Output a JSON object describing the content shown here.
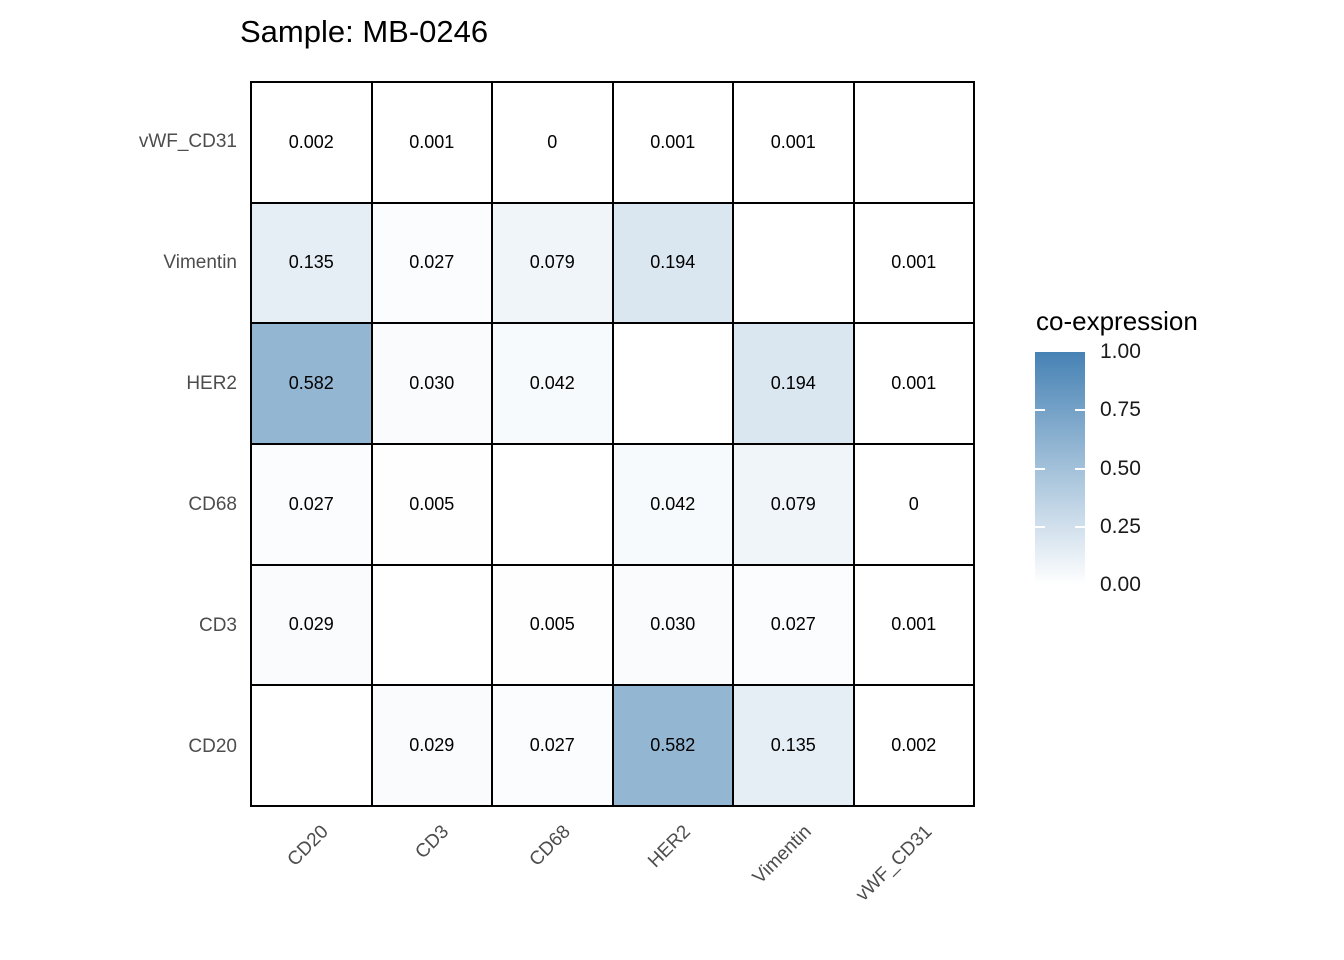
{
  "title": "Sample: MB-0246",
  "legend": {
    "title": "co-expression",
    "tick_labels": [
      "1.00",
      "0.75",
      "0.50",
      "0.25",
      "0.00"
    ],
    "tick_values": [
      1.0,
      0.75,
      0.5,
      0.25,
      0.0
    ],
    "high_color": "#4682B4",
    "low_color": "#FFFFFF"
  },
  "chart_data": {
    "type": "heatmap",
    "title": "Sample: MB-0246",
    "x_categories": [
      "CD20",
      "CD3",
      "CD68",
      "HER2",
      "Vimentin",
      "vWF_CD31"
    ],
    "y_categories": [
      "vWF_CD31",
      "Vimentin",
      "HER2",
      "CD68",
      "CD3",
      "CD20"
    ],
    "values": [
      [
        0.002,
        0.001,
        0,
        0.001,
        0.001,
        null
      ],
      [
        0.135,
        0.027,
        0.079,
        0.194,
        null,
        0.001
      ],
      [
        0.582,
        0.03,
        0.042,
        null,
        0.194,
        0.001
      ],
      [
        0.027,
        0.005,
        null,
        0.042,
        0.079,
        0
      ],
      [
        0.029,
        null,
        0.005,
        0.03,
        0.027,
        0.001
      ],
      [
        null,
        0.029,
        0.027,
        0.582,
        0.135,
        0.002
      ]
    ],
    "value_labels": [
      [
        "0.002",
        "0.001",
        "0",
        "0.001",
        "0.001",
        ""
      ],
      [
        "0.135",
        "0.027",
        "0.079",
        "0.194",
        "",
        "0.001"
      ],
      [
        "0.582",
        "0.030",
        "0.042",
        "",
        "0.194",
        "0.001"
      ],
      [
        "0.027",
        "0.005",
        "",
        "0.042",
        "0.079",
        "0"
      ],
      [
        "0.029",
        "",
        "0.005",
        "0.030",
        "0.027",
        "0.001"
      ],
      [
        "",
        "0.029",
        "0.027",
        "0.582",
        "0.135",
        "0.002"
      ]
    ],
    "colorscale": {
      "low": "#FFFFFF",
      "high": "#4682B4",
      "na": "#FFFFFF",
      "domain": [
        0,
        1
      ]
    },
    "legend_title": "co-expression",
    "legend_ticks": [
      1.0,
      0.75,
      0.5,
      0.25,
      0.0
    ],
    "grid_color": "#000000",
    "cell_text_color": "#000000",
    "axis_text_color": "#4D4D4D",
    "legend_position": "right",
    "gridlines": false
  }
}
